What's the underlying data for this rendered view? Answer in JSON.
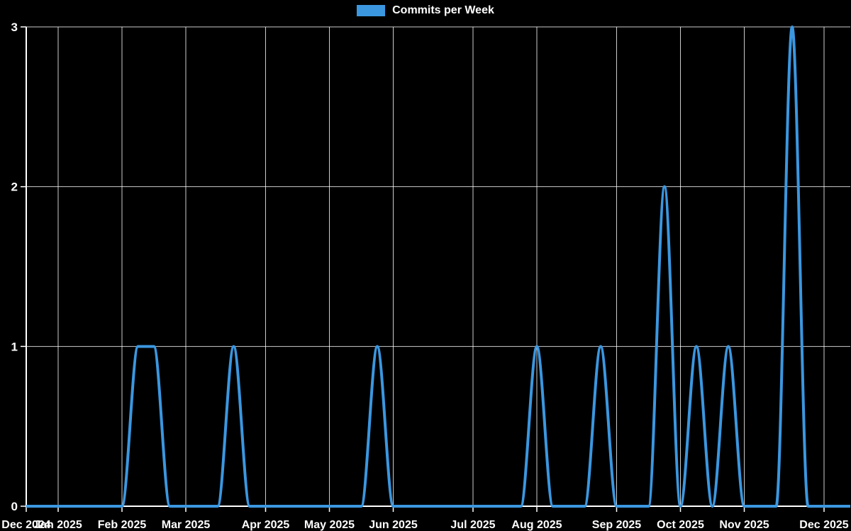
{
  "chart_data": {
    "type": "line",
    "title": "",
    "legend": "Commits per Week",
    "legend_position": "top-center",
    "x_unit": "week",
    "values": [
      0,
      0,
      0,
      0,
      0,
      0,
      0,
      1,
      1,
      0,
      0,
      0,
      0,
      1,
      0,
      0,
      0,
      0,
      0,
      0,
      0,
      0,
      1,
      0,
      0,
      0,
      0,
      0,
      0,
      0,
      0,
      0,
      1,
      0,
      0,
      0,
      1,
      0,
      0,
      0,
      2,
      0,
      1,
      0,
      1,
      0,
      0,
      0,
      3,
      0,
      0,
      0,
      0
    ],
    "month_ticks": [
      {
        "label": "Dec 2024",
        "week": 0
      },
      {
        "label": "Jan 2025",
        "week": 2
      },
      {
        "label": "Feb 2025",
        "week": 6
      },
      {
        "label": "Mar 2025",
        "week": 10
      },
      {
        "label": "Apr 2025",
        "week": 15
      },
      {
        "label": "May 2025",
        "week": 19
      },
      {
        "label": "Jun 2025",
        "week": 23
      },
      {
        "label": "Jul 2025",
        "week": 28
      },
      {
        "label": "Aug 2025",
        "week": 32
      },
      {
        "label": "Sep 2025",
        "week": 37
      },
      {
        "label": "Oct 2025",
        "week": 41
      },
      {
        "label": "Nov 2025",
        "week": 45
      },
      {
        "label": "Dec 2025",
        "week": 50
      }
    ],
    "y_ticks": [
      0,
      1,
      2,
      3
    ],
    "ylim": [
      0,
      3
    ],
    "grid": "on",
    "line_color": "#3b97e0",
    "background_color": "#000000",
    "grid_color": "rgba(255,255,255,0.8)",
    "axis_color": "#ffffff",
    "axis_text_color": "#ffffff"
  }
}
